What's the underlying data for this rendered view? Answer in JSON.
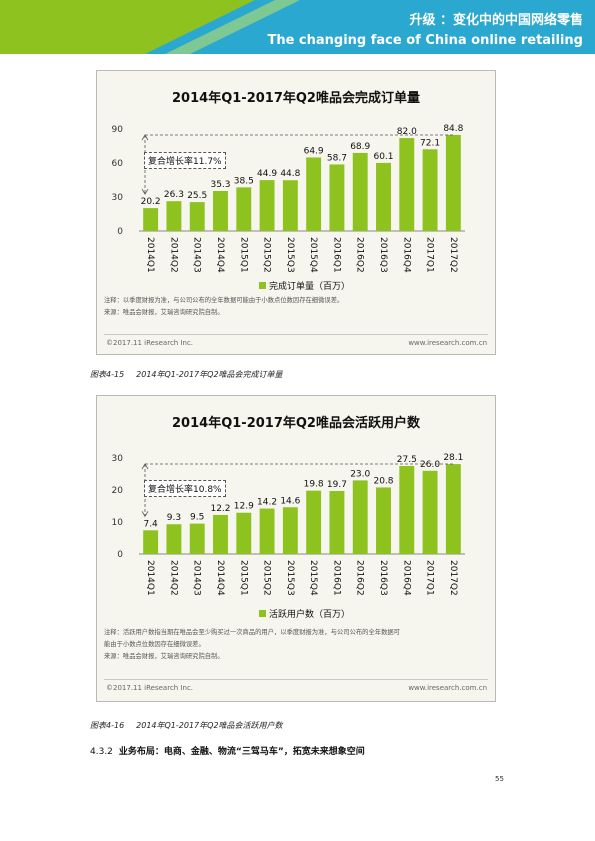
{
  "header": {
    "title": "升级 ：变化中的中国网络零售",
    "subtitle": "The changing face of China online retailing",
    "colors": {
      "band_light": "#8dc21f",
      "band_dark": "#2aa8cf"
    }
  },
  "figures": [
    {
      "title": "2014年Q1-2017年Q2唯品会完成订单量",
      "cagr_label": "复合增长率11.7%",
      "legend": "完成订单量（百万）",
      "notes": [
        "注释：以季度财报为准，与公司公布的全年数据可能由于小数点位数因存在细微误差。",
        "来源：唯品会财报，艾瑞咨询研究院自制。"
      ],
      "footer_left": "©2017.11 iResearch Inc.",
      "footer_right": "www.iresearch.com.cn",
      "caption_number": "图表4-15",
      "caption_text": "2014年Q1-2017年Q2唯品会完成订单量"
    },
    {
      "title": "2014年Q1-2017年Q2唯品会活跃用户数",
      "cagr_label": "复合增长率10.8%",
      "legend": "活跃用户数（百万）",
      "notes": [
        "注释：活跃用户数指当期在唯品会至少购买过一次商品的用户，以季度财报为准，与公司公布的全年数据可",
        "能由于小数点位数因存在细微误差。",
        "来源：唯品会财报，艾瑞咨询研究院自制。"
      ],
      "footer_left": "©2017.11 iResearch Inc.",
      "footer_right": "www.iresearch.com.cn",
      "caption_number": "图表4-16",
      "caption_text": "2014年Q1-2017年Q2唯品会活跃用户数"
    }
  ],
  "section": {
    "number": "4.3.2",
    "title": "业务布局：电商、金融、物流“三驾马车”，拓宽未来想象空间"
  },
  "page_number": "55",
  "chart_data": [
    {
      "type": "bar",
      "title": "2014年Q1-2017年Q2唯品会完成订单量",
      "categories": [
        "2014Q1",
        "2014Q2",
        "2014Q3",
        "2014Q4",
        "2015Q1",
        "2015Q2",
        "2015Q3",
        "2015Q4",
        "2016Q1",
        "2016Q2",
        "2016Q3",
        "2016Q4",
        "2017Q1",
        "2017Q2"
      ],
      "series": [
        {
          "name": "完成订单量（百万）",
          "values": [
            20.2,
            26.3,
            25.5,
            35.3,
            38.5,
            44.9,
            44.8,
            64.9,
            58.7,
            68.9,
            60.1,
            82.0,
            72.1,
            84.8
          ]
        }
      ],
      "labels": [
        "20.2",
        "26.3",
        "25.5",
        "35.3",
        "38.5",
        "44.9",
        "44.8",
        "64.9",
        "58.7",
        "68.9",
        "60.1",
        "82.0",
        "72.1",
        "84.8"
      ],
      "ylim": [
        0,
        90
      ],
      "yticks": [
        0,
        30,
        60,
        90
      ],
      "ytick_labels": [
        "0",
        "30",
        "60",
        "90"
      ],
      "annotation": "复合增长率11.7%",
      "color": "#8dc21f",
      "legend_position": "bottom"
    },
    {
      "type": "bar",
      "title": "2014年Q1-2017年Q2唯品会活跃用户数",
      "categories": [
        "2014Q1",
        "2014Q2",
        "2014Q3",
        "2014Q4",
        "2015Q1",
        "2015Q2",
        "2015Q3",
        "2015Q4",
        "2016Q1",
        "2016Q2",
        "2016Q3",
        "2016Q4",
        "2017Q1",
        "2017Q2"
      ],
      "series": [
        {
          "name": "活跃用户数（百万）",
          "values": [
            7.4,
            9.3,
            9.5,
            12.2,
            12.9,
            14.2,
            14.6,
            19.8,
            19.7,
            23.0,
            20.8,
            27.5,
            26.0,
            28.1
          ]
        }
      ],
      "labels": [
        "7.4",
        "9.3",
        "9.5",
        "12.2",
        "12.9",
        "14.2",
        "14.6",
        "19.8",
        "19.7",
        "23.0",
        "20.8",
        "27.5",
        "26.0",
        "28.1"
      ],
      "ylim": [
        0,
        30
      ],
      "yticks": [
        0,
        10,
        20,
        30
      ],
      "ytick_labels": [
        "0",
        "10",
        "20",
        "30"
      ],
      "annotation": "复合增长率10.8%",
      "color": "#8dc21f",
      "legend_position": "bottom"
    }
  ]
}
